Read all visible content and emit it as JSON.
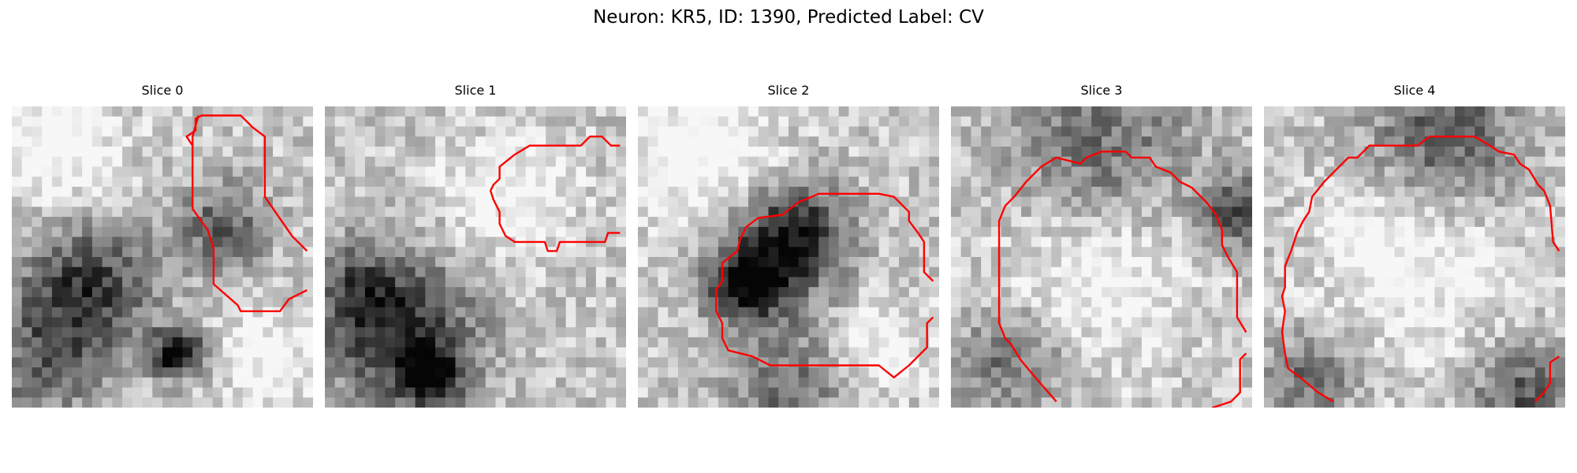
{
  "figure": {
    "title": "Neuron: KR5, ID: 1390, Predicted Label: CV"
  },
  "panels": [
    {
      "title": "Slice 0",
      "seed": 11,
      "darkSpots": [
        [
          0.25,
          0.6,
          0.22,
          0.55
        ],
        [
          0.55,
          0.82,
          0.08,
          0.85
        ],
        [
          0.7,
          0.4,
          0.15,
          0.4
        ],
        [
          0.1,
          0.85,
          0.2,
          0.35
        ]
      ],
      "lightSpots": [
        [
          0.15,
          0.15,
          0.2,
          0.3
        ],
        [
          0.85,
          0.85,
          0.15,
          0.25
        ]
      ],
      "contour": [
        [
          0.62,
          0.03
        ],
        [
          0.6,
          0.1
        ],
        [
          0.6,
          0.13
        ],
        [
          0.58,
          0.1
        ],
        [
          0.61,
          0.08
        ],
        [
          0.61,
          0.04
        ],
        [
          0.63,
          0.03
        ],
        [
          0.76,
          0.03
        ],
        [
          0.8,
          0.07
        ],
        [
          0.84,
          0.1
        ],
        [
          0.84,
          0.3
        ],
        [
          0.93,
          0.43
        ],
        [
          0.98,
          0.48
        ]
      ],
      "contour2": [
        [
          0.6,
          0.12
        ],
        [
          0.6,
          0.34
        ],
        [
          0.65,
          0.41
        ],
        [
          0.67,
          0.47
        ],
        [
          0.67,
          0.59
        ],
        [
          0.75,
          0.66
        ],
        [
          0.76,
          0.68
        ],
        [
          0.89,
          0.68
        ],
        [
          0.92,
          0.64
        ],
        [
          0.98,
          0.61
        ]
      ]
    },
    {
      "title": "Slice 1",
      "seed": 23,
      "darkSpots": [
        [
          0.25,
          0.75,
          0.25,
          0.6
        ],
        [
          0.35,
          0.9,
          0.1,
          0.6
        ],
        [
          0.1,
          0.6,
          0.15,
          0.3
        ]
      ],
      "lightSpots": [
        [
          0.6,
          0.3,
          0.2,
          0.25
        ]
      ],
      "contour": [
        [
          0.98,
          0.13
        ],
        [
          0.95,
          0.13
        ],
        [
          0.92,
          0.1
        ],
        [
          0.88,
          0.1
        ],
        [
          0.85,
          0.13
        ],
        [
          0.68,
          0.13
        ],
        [
          0.63,
          0.16
        ],
        [
          0.58,
          0.2
        ],
        [
          0.58,
          0.24
        ],
        [
          0.56,
          0.26
        ],
        [
          0.55,
          0.28
        ],
        [
          0.56,
          0.31
        ],
        [
          0.58,
          0.35
        ],
        [
          0.58,
          0.39
        ],
        [
          0.6,
          0.43
        ],
        [
          0.63,
          0.45
        ],
        [
          0.73,
          0.45
        ],
        [
          0.74,
          0.48
        ],
        [
          0.77,
          0.48
        ],
        [
          0.78,
          0.45
        ],
        [
          0.93,
          0.45
        ],
        [
          0.94,
          0.42
        ],
        [
          0.98,
          0.42
        ]
      ]
    },
    {
      "title": "Slice 2",
      "seed": 37,
      "darkSpots": [
        [
          0.45,
          0.5,
          0.2,
          0.5
        ],
        [
          0.35,
          0.6,
          0.12,
          0.55
        ],
        [
          0.55,
          0.4,
          0.15,
          0.4
        ],
        [
          0.5,
          0.95,
          0.2,
          0.35
        ]
      ],
      "lightSpots": [
        [
          0.2,
          0.15,
          0.25,
          0.3
        ],
        [
          0.8,
          0.8,
          0.15,
          0.25
        ]
      ],
      "contour": [
        [
          0.98,
          0.58
        ],
        [
          0.95,
          0.55
        ],
        [
          0.95,
          0.45
        ],
        [
          0.93,
          0.42
        ],
        [
          0.9,
          0.38
        ],
        [
          0.9,
          0.35
        ],
        [
          0.85,
          0.3
        ],
        [
          0.8,
          0.29
        ],
        [
          0.6,
          0.29
        ],
        [
          0.53,
          0.32
        ],
        [
          0.48,
          0.36
        ],
        [
          0.4,
          0.37
        ],
        [
          0.36,
          0.4
        ],
        [
          0.34,
          0.44
        ],
        [
          0.33,
          0.48
        ],
        [
          0.28,
          0.52
        ],
        [
          0.28,
          0.58
        ],
        [
          0.26,
          0.61
        ],
        [
          0.26,
          0.68
        ],
        [
          0.28,
          0.72
        ],
        [
          0.28,
          0.77
        ],
        [
          0.3,
          0.81
        ],
        [
          0.38,
          0.83
        ],
        [
          0.44,
          0.86
        ],
        [
          0.8,
          0.86
        ],
        [
          0.85,
          0.9
        ],
        [
          0.9,
          0.86
        ],
        [
          0.96,
          0.8
        ],
        [
          0.96,
          0.72
        ],
        [
          0.98,
          0.7
        ]
      ]
    },
    {
      "title": "Slice 3",
      "seed": 53,
      "darkSpots": [
        [
          0.95,
          0.35,
          0.12,
          0.5
        ],
        [
          0.2,
          0.85,
          0.18,
          0.35
        ],
        [
          0.5,
          0.15,
          0.3,
          0.35
        ]
      ],
      "lightSpots": [
        [
          0.5,
          0.55,
          0.3,
          0.25
        ]
      ],
      "contour": [
        [
          0.35,
          0.98
        ],
        [
          0.28,
          0.9
        ],
        [
          0.23,
          0.84
        ],
        [
          0.2,
          0.79
        ],
        [
          0.18,
          0.77
        ],
        [
          0.16,
          0.72
        ],
        [
          0.16,
          0.38
        ],
        [
          0.18,
          0.33
        ],
        [
          0.21,
          0.3
        ],
        [
          0.25,
          0.25
        ],
        [
          0.3,
          0.2
        ],
        [
          0.35,
          0.17
        ],
        [
          0.43,
          0.19
        ],
        [
          0.45,
          0.17
        ],
        [
          0.5,
          0.15
        ],
        [
          0.58,
          0.15
        ],
        [
          0.6,
          0.17
        ],
        [
          0.66,
          0.17
        ],
        [
          0.68,
          0.2
        ],
        [
          0.73,
          0.22
        ],
        [
          0.76,
          0.25
        ],
        [
          0.8,
          0.27
        ],
        [
          0.85,
          0.32
        ],
        [
          0.88,
          0.36
        ],
        [
          0.9,
          0.41
        ],
        [
          0.9,
          0.46
        ],
        [
          0.92,
          0.5
        ],
        [
          0.95,
          0.55
        ],
        [
          0.95,
          0.7
        ],
        [
          0.98,
          0.75
        ]
      ],
      "contour2": [
        [
          0.98,
          0.82
        ],
        [
          0.96,
          0.84
        ],
        [
          0.96,
          0.95
        ],
        [
          0.93,
          0.98
        ],
        [
          0.87,
          1.0
        ],
        [
          0.83,
          1.03
        ]
      ]
    },
    {
      "title": "Slice 4",
      "seed": 71,
      "darkSpots": [
        [
          0.6,
          0.1,
          0.25,
          0.45
        ],
        [
          0.85,
          0.95,
          0.15,
          0.45
        ],
        [
          0.15,
          0.9,
          0.15,
          0.35
        ]
      ],
      "lightSpots": [
        [
          0.5,
          0.5,
          0.3,
          0.25
        ]
      ],
      "contour": [
        [
          0.98,
          0.48
        ],
        [
          0.96,
          0.45
        ],
        [
          0.95,
          0.33
        ],
        [
          0.93,
          0.28
        ],
        [
          0.91,
          0.26
        ],
        [
          0.88,
          0.21
        ],
        [
          0.85,
          0.19
        ],
        [
          0.83,
          0.16
        ],
        [
          0.78,
          0.15
        ],
        [
          0.75,
          0.13
        ],
        [
          0.7,
          0.1
        ],
        [
          0.55,
          0.1
        ],
        [
          0.51,
          0.13
        ],
        [
          0.35,
          0.13
        ],
        [
          0.33,
          0.15
        ],
        [
          0.31,
          0.17
        ],
        [
          0.28,
          0.17
        ],
        [
          0.25,
          0.2
        ],
        [
          0.2,
          0.25
        ],
        [
          0.16,
          0.3
        ],
        [
          0.15,
          0.35
        ],
        [
          0.13,
          0.38
        ],
        [
          0.11,
          0.42
        ],
        [
          0.1,
          0.45
        ],
        [
          0.09,
          0.48
        ],
        [
          0.07,
          0.53
        ],
        [
          0.07,
          0.6
        ],
        [
          0.06,
          0.63
        ],
        [
          0.07,
          0.68
        ],
        [
          0.06,
          0.75
        ],
        [
          0.07,
          0.82
        ],
        [
          0.08,
          0.87
        ],
        [
          0.12,
          0.9
        ],
        [
          0.18,
          0.95
        ],
        [
          0.23,
          0.98
        ]
      ],
      "contour2": [
        [
          0.9,
          0.98
        ],
        [
          0.93,
          0.95
        ],
        [
          0.95,
          0.92
        ],
        [
          0.95,
          0.85
        ],
        [
          0.98,
          0.83
        ]
      ]
    }
  ],
  "colors": {
    "contour": "#ff0000",
    "text": "#000000",
    "background": "#ffffff"
  }
}
